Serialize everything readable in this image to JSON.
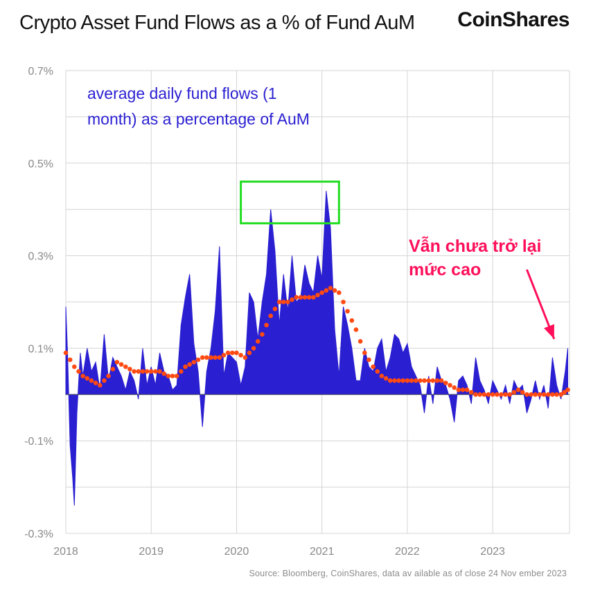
{
  "header": {
    "title": "Crypto Asset Fund Flows as a % of Fund AuM",
    "brand": "CoinShares"
  },
  "footer": {
    "source": "Source: Bloomberg, CoinShares, data av ailable as of close 24 Nov ember 2023"
  },
  "annotations": {
    "series_note_line1": "average daily fund flows (1",
    "series_note_line2": "month) as a percentage of AuM",
    "callout_line1": "Vẫn chưa trở lại",
    "callout_line2": "mức cao"
  },
  "colors": {
    "flows": "#2a1fd1",
    "trend": "#ff4a12",
    "highlight_box": "#22dd22",
    "callout": "#ff0f5a",
    "grid": "#d4d4d4"
  },
  "chart_data": {
    "type": "area",
    "title": "Crypto Asset Fund Flows as a % of Fund AuM",
    "xlabel": "",
    "ylabel": "",
    "xlim": [
      2018.0,
      2023.9
    ],
    "ylim": [
      -0.3,
      0.7
    ],
    "y_ticks": [
      -0.3,
      -0.1,
      0.1,
      0.3,
      0.5,
      0.7
    ],
    "y_tick_labels": [
      "-0.3%",
      "-0.1%",
      "0.1%",
      "0.3%",
      "0.5%",
      "0.7%"
    ],
    "x_ticks": [
      2018,
      2019,
      2020,
      2021,
      2022,
      2023
    ],
    "x_tick_labels": [
      "2018",
      "2019",
      "2020",
      "2021",
      "2022",
      "2023"
    ],
    "grid": true,
    "series": [
      {
        "name": "average daily fund flows (1 month) as a percentage of AuM",
        "style": "filled-area",
        "x": [
          2018.0,
          2018.02,
          2018.05,
          2018.08,
          2018.1,
          2018.13,
          2018.17,
          2018.2,
          2018.25,
          2018.3,
          2018.35,
          2018.4,
          2018.45,
          2018.5,
          2018.55,
          2018.6,
          2018.65,
          2018.7,
          2018.75,
          2018.8,
          2018.85,
          2018.9,
          2018.95,
          2019.0,
          2019.05,
          2019.1,
          2019.15,
          2019.2,
          2019.25,
          2019.3,
          2019.35,
          2019.4,
          2019.45,
          2019.5,
          2019.55,
          2019.6,
          2019.65,
          2019.7,
          2019.75,
          2019.8,
          2019.85,
          2019.9,
          2019.95,
          2020.0,
          2020.05,
          2020.1,
          2020.15,
          2020.2,
          2020.25,
          2020.3,
          2020.35,
          2020.4,
          2020.45,
          2020.5,
          2020.55,
          2020.6,
          2020.65,
          2020.7,
          2020.75,
          2020.8,
          2020.85,
          2020.9,
          2020.95,
          2021.0,
          2021.05,
          2021.1,
          2021.15,
          2021.2,
          2021.25,
          2021.3,
          2021.35,
          2021.4,
          2021.45,
          2021.5,
          2021.55,
          2021.6,
          2021.65,
          2021.7,
          2021.75,
          2021.8,
          2021.85,
          2021.9,
          2021.95,
          2022.0,
          2022.05,
          2022.1,
          2022.15,
          2022.2,
          2022.25,
          2022.3,
          2022.35,
          2022.4,
          2022.45,
          2022.5,
          2022.55,
          2022.6,
          2022.65,
          2022.7,
          2022.75,
          2022.8,
          2022.85,
          2022.9,
          2022.95,
          2023.0,
          2023.05,
          2023.1,
          2023.15,
          2023.2,
          2023.25,
          2023.3,
          2023.35,
          2023.4,
          2023.45,
          2023.5,
          2023.55,
          2023.6,
          2023.65,
          2023.7,
          2023.75,
          2023.8,
          2023.85,
          2023.88
        ],
        "values": [
          0.19,
          0.09,
          -0.11,
          -0.18,
          -0.24,
          -0.04,
          0.09,
          0.04,
          0.1,
          0.05,
          0.07,
          0.01,
          0.13,
          0.03,
          0.08,
          0.06,
          0.04,
          0.01,
          0.05,
          0.03,
          -0.01,
          0.1,
          0.02,
          0.06,
          0.02,
          0.09,
          0.05,
          0.04,
          0.01,
          0.02,
          0.15,
          0.21,
          0.26,
          0.11,
          0.05,
          -0.07,
          0.05,
          0.1,
          0.18,
          0.32,
          0.04,
          0.09,
          0.08,
          0.07,
          0.02,
          0.06,
          0.22,
          0.2,
          0.12,
          0.2,
          0.26,
          0.4,
          0.31,
          0.15,
          0.26,
          0.18,
          0.3,
          0.2,
          0.21,
          0.28,
          0.24,
          0.22,
          0.3,
          0.25,
          0.44,
          0.36,
          0.14,
          0.04,
          0.19,
          0.15,
          0.1,
          0.03,
          0.03,
          0.1,
          0.06,
          0.05,
          0.1,
          0.12,
          0.05,
          0.08,
          0.13,
          0.12,
          0.09,
          0.11,
          0.06,
          0.04,
          0.02,
          -0.04,
          0.04,
          -0.02,
          0.06,
          0.03,
          0.02,
          -0.01,
          -0.06,
          0.03,
          0.04,
          0.02,
          -0.02,
          0.08,
          0.03,
          0.01,
          -0.02,
          0.03,
          0.01,
          -0.01,
          0.02,
          -0.02,
          0.03,
          0.01,
          0.02,
          -0.04,
          -0.01,
          0.03,
          -0.01,
          0.02,
          -0.03,
          0.08,
          0.02,
          -0.01,
          0.05,
          0.1
        ]
      },
      {
        "name": "trend",
        "style": "dotted-line",
        "x": [
          2018.0,
          2018.1,
          2018.2,
          2018.3,
          2018.4,
          2018.5,
          2018.6,
          2018.7,
          2018.8,
          2018.9,
          2019.0,
          2019.1,
          2019.2,
          2019.3,
          2019.4,
          2019.5,
          2019.6,
          2019.7,
          2019.8,
          2019.9,
          2020.0,
          2020.1,
          2020.2,
          2020.3,
          2020.4,
          2020.5,
          2020.6,
          2020.7,
          2020.8,
          2020.9,
          2021.0,
          2021.1,
          2021.2,
          2021.3,
          2021.4,
          2021.5,
          2021.6,
          2021.7,
          2021.8,
          2021.9,
          2022.0,
          2022.1,
          2022.2,
          2022.3,
          2022.4,
          2022.5,
          2022.6,
          2022.7,
          2022.8,
          2022.9,
          2023.0,
          2023.1,
          2023.2,
          2023.3,
          2023.4,
          2023.5,
          2023.6,
          2023.7,
          2023.8,
          2023.88
        ],
        "values": [
          0.09,
          0.06,
          0.04,
          0.03,
          0.02,
          0.04,
          0.07,
          0.06,
          0.05,
          0.05,
          0.05,
          0.05,
          0.04,
          0.04,
          0.06,
          0.07,
          0.08,
          0.08,
          0.08,
          0.09,
          0.09,
          0.08,
          0.1,
          0.13,
          0.17,
          0.2,
          0.2,
          0.21,
          0.21,
          0.21,
          0.22,
          0.23,
          0.22,
          0.18,
          0.14,
          0.09,
          0.06,
          0.04,
          0.03,
          0.03,
          0.03,
          0.03,
          0.03,
          0.03,
          0.03,
          0.02,
          0.01,
          0.01,
          0.0,
          0.0,
          0.0,
          0.0,
          0.0,
          0.01,
          0.0,
          0.0,
          0.0,
          0.0,
          0.0,
          0.01
        ]
      }
    ],
    "highlight": {
      "shape": "rectangle",
      "x_range": [
        2020.05,
        2021.2
      ],
      "y_range": [
        0.37,
        0.46
      ]
    },
    "arrow": {
      "from": [
        2023.4,
        0.27
      ],
      "to": [
        2023.72,
        0.12
      ]
    }
  }
}
